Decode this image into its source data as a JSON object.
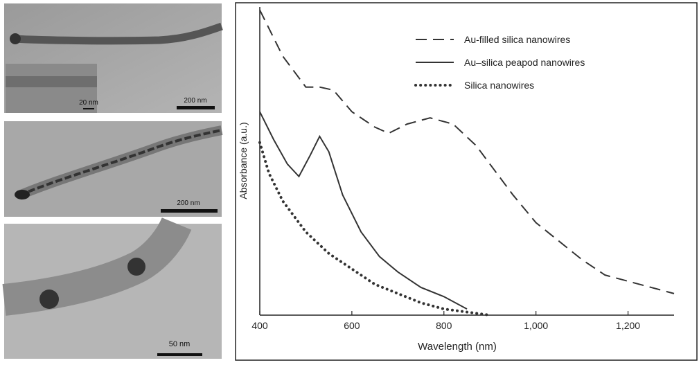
{
  "panels": [
    {
      "scale_bars": [
        "20 nm",
        "200 nm"
      ]
    },
    {
      "scale_bars": [
        "200 nm"
      ]
    },
    {
      "scale_bars": [
        "50 nm"
      ]
    }
  ],
  "chart_data": {
    "type": "line",
    "xlabel": "Wavelength (nm)",
    "ylabel": "Absorbance (a.u.)",
    "xlim": [
      400,
      1300
    ],
    "ylim": [
      0,
      1
    ],
    "xticks": [
      400,
      600,
      800,
      {
        "value": 1000,
        "label": "1,000"
      },
      {
        "value": 1200,
        "label": "1,200"
      }
    ],
    "legend": "top-right",
    "series": [
      {
        "name": "Au-filled silica nanowires",
        "color": "#333333",
        "style": "dashed",
        "x": [
          400,
          450,
          500,
          530,
          560,
          600,
          650,
          680,
          720,
          770,
          820,
          870,
          900,
          950,
          1000,
          1050,
          1100,
          1150,
          1200,
          1250,
          1300
        ],
        "values": [
          0.99,
          0.84,
          0.74,
          0.74,
          0.73,
          0.66,
          0.61,
          0.59,
          0.62,
          0.64,
          0.62,
          0.55,
          0.49,
          0.39,
          0.3,
          0.24,
          0.18,
          0.13,
          0.11,
          0.09,
          0.07
        ]
      },
      {
        "name": "Au–silica peapod nanowires",
        "color": "#333333",
        "style": "solid",
        "x": [
          400,
          430,
          460,
          485,
          510,
          530,
          550,
          580,
          620,
          660,
          700,
          750,
          800,
          850
        ],
        "values": [
          0.66,
          0.57,
          0.49,
          0.45,
          0.52,
          0.58,
          0.53,
          0.39,
          0.27,
          0.19,
          0.14,
          0.09,
          0.06,
          0.02
        ]
      },
      {
        "name": "Silica nanowires",
        "color": "#333333",
        "style": "dotted",
        "x": [
          400,
          420,
          450,
          500,
          550,
          600,
          650,
          700,
          750,
          800,
          850,
          900
        ],
        "values": [
          0.56,
          0.46,
          0.37,
          0.27,
          0.2,
          0.15,
          0.1,
          0.07,
          0.04,
          0.02,
          0.01,
          0
        ]
      }
    ]
  }
}
